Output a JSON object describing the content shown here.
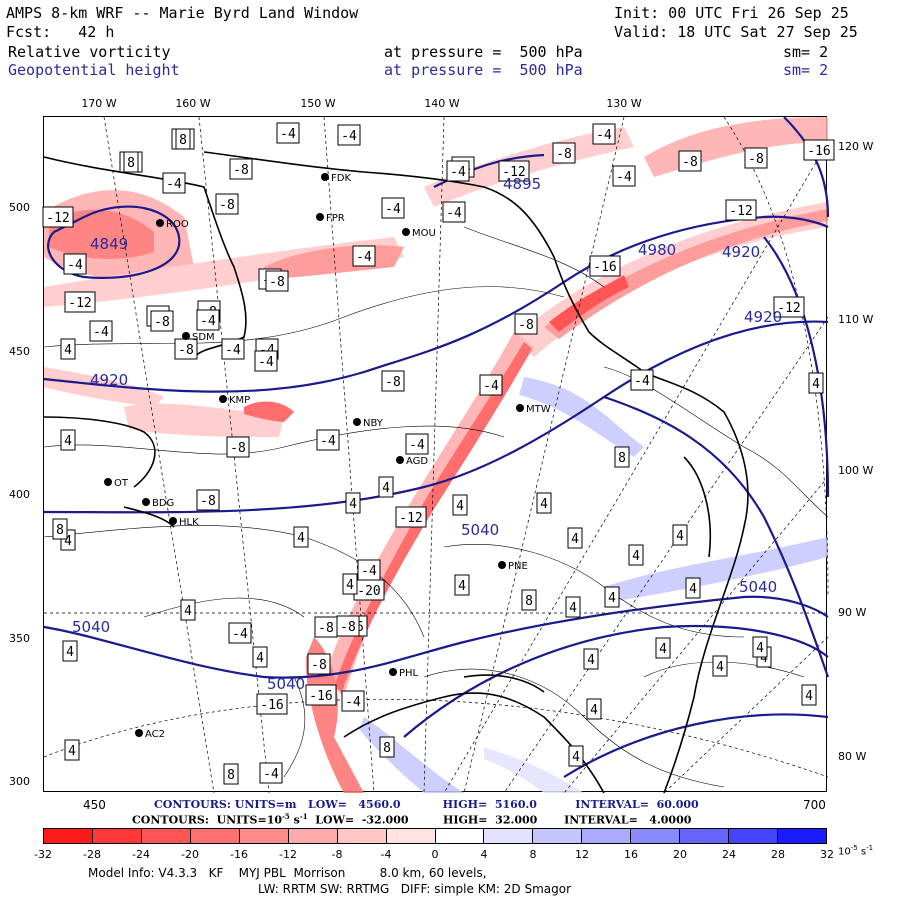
{
  "header": {
    "title": "AMPS 8-km WRF -- Marie Byrd Land Window",
    "init": "Init: 00 UTC Fri 26 Sep 25",
    "fcst": "Fcst:   42 h",
    "valid": "Valid: 18 UTC Sat 27 Sep 25",
    "field1": "Relative vorticity",
    "field1_level": "at pressure =  500 hPa",
    "field1_sm": "sm= 2",
    "field2": "Geopotential height",
    "field2_level": "at pressure =  500 hPa",
    "field2_sm": "sm= 2"
  },
  "axes": {
    "top_lon": [
      "170 W",
      "160 W",
      "150 W",
      "140 W",
      "130 W"
    ],
    "right_lon": [
      "120 W",
      "110 W",
      "100 W",
      "90 W",
      "80 W"
    ],
    "left_y": [
      "500",
      "450",
      "400",
      "350",
      "300"
    ],
    "bottom_x": [
      "450",
      "700"
    ]
  },
  "contour_info": {
    "line1_label": "CONTOURS:",
    "line1_units": "UNITS=m",
    "line1_low": "LOW=   4560.0",
    "line1_high": "HIGH=  5160.0",
    "line1_interval": "INTERVAL=  60.000",
    "line2_label": "CONTOURS:",
    "line2_units": "UNITS=10",
    "line2_units_exp": "-5",
    "line2_units_tail": " s",
    "line2_units_tail_exp": "-1",
    "line2_low": "LOW=  -32.000",
    "line2_high": "HIGH=  32.000",
    "line2_interval": "INTERVAL=   4.0000"
  },
  "colorbar": {
    "labels": [
      "-32",
      "-28",
      "-24",
      "-20",
      "-16",
      "-12",
      "-8",
      "-4",
      "0",
      "4",
      "8",
      "12",
      "16",
      "20",
      "24",
      "28",
      "32"
    ],
    "units": "10",
    "units_exp": "-5",
    "units_tail": " s",
    "units_tail_exp": "-1",
    "colors": [
      "#ff1a1a",
      "#ff3838",
      "#ff5454",
      "#ff7070",
      "#ff8c8c",
      "#ffaaaa",
      "#ffc6c6",
      "#ffe2e2",
      "#ffffff",
      "#ffffff",
      "#e2e2ff",
      "#c6c6ff",
      "#aaaaff",
      "#8888ff",
      "#6666ff",
      "#4444ff",
      "#1a1aff"
    ]
  },
  "model_info": {
    "line1": "Model Info: V4.3.3   KF    MYJ PBL  Morrison         8.0 km, 60 levels,",
    "line2": "LW: RRTM SW: RRTMG   DIFF: simple KM: 2D Smagor"
  },
  "stations": [
    "FDK",
    "FPR",
    "MOU",
    "ROO",
    "SDM",
    "KMP",
    "NBY",
    "AGD",
    "MTW",
    "BDG",
    "HLK",
    "PNE",
    "PHL",
    "AC2",
    "OT"
  ],
  "height_labels": [
    "4849",
    "4895",
    "4920",
    "4920",
    "4920",
    "5040",
    "5040",
    "5040",
    "5040",
    "4980"
  ],
  "vorticity_labels": [
    "-8",
    "-4",
    "-8",
    "-4",
    "-4",
    "-8",
    "-4",
    "-16",
    "-8",
    "-4",
    "-12",
    "-8",
    "-4",
    "-4",
    "-4",
    "-12",
    "-8",
    "-8",
    "-4",
    "-12",
    "-4",
    "-4",
    "-8",
    "-8",
    "-4",
    "-16",
    "-8",
    "-12",
    "-4",
    "-8",
    "-4",
    "-8",
    "-4",
    "-4",
    "-12",
    "-4",
    "-8",
    "-4",
    "-4",
    "-8",
    "-4",
    "-12",
    "-4",
    "-8",
    "-4",
    "-4",
    "-16",
    "-8",
    "-16",
    "-20",
    "-8",
    "-4",
    "-4",
    "-16",
    "-8",
    "-4",
    "-4",
    "4",
    "4",
    "4",
    "4",
    "4",
    "4",
    "4",
    "4",
    "4",
    "4",
    "4",
    "4",
    "4",
    "4",
    "4",
    "4",
    "4",
    "4",
    "4",
    "4",
    "4",
    "4",
    "4",
    "4",
    "4",
    "4",
    "4",
    "4",
    "4",
    "8",
    "8",
    "8",
    "8",
    "8",
    "8",
    "8"
  ]
}
